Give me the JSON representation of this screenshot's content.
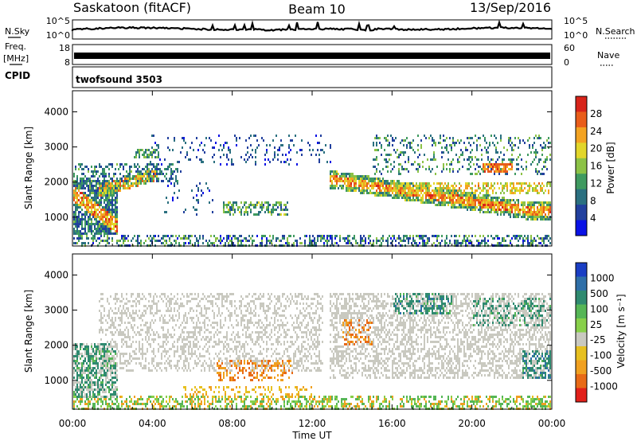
{
  "header": {
    "station": "Saskatoon (fitACF)",
    "beam": "Beam 10",
    "date": "13/Sep/2016"
  },
  "noise_panel": {
    "left_label": "N.Sky",
    "right_label": "N.Search",
    "left_ticks": [
      "10^5",
      "10^0"
    ],
    "right_ticks": [
      "10^5",
      "10^0"
    ]
  },
  "freq_panel": {
    "left_label_line1": "Freq.",
    "left_label_line2": "[MHz]",
    "left_ticks": [
      "18",
      "8"
    ],
    "right_ticks": [
      "60",
      "0"
    ],
    "right_label": "Nave"
  },
  "cpid_panel": {
    "label": "CPID",
    "program": "twofsound 3503"
  },
  "chart_data": [
    {
      "type": "heatmap",
      "panel": "power",
      "ylabel": "Slant Range [km]",
      "yticks": [
        "1000",
        "2000",
        "3000",
        "4000"
      ],
      "ylim": [
        180,
        4600
      ],
      "xticks": [
        "00:00",
        "04:00",
        "08:00",
        "12:00",
        "16:00",
        "20:00",
        "00:00"
      ],
      "xlim_hours": [
        0,
        24
      ],
      "colorbar": {
        "label": "Power [dB]",
        "ticks": [
          "4",
          "8",
          "12",
          "16",
          "20",
          "24",
          "28"
        ],
        "colors": [
          "#0a12e6",
          "#22409e",
          "#2b7080",
          "#3f9a60",
          "#8cc246",
          "#e2d62a",
          "#f3a322",
          "#e95d1a",
          "#d8241a"
        ]
      }
    },
    {
      "type": "heatmap",
      "panel": "velocity",
      "ylabel": "Slant Range [km]",
      "yticks": [
        "1000",
        "2000",
        "3000",
        "4000"
      ],
      "ylim": [
        180,
        4600
      ],
      "xticks": [
        "00:00",
        "04:00",
        "08:00",
        "12:00",
        "16:00",
        "20:00",
        "00:00"
      ],
      "xlim_hours": [
        0,
        24
      ],
      "xlabel": "Time UT",
      "colorbar": {
        "label": "Velocity [m s⁻¹]",
        "ticks": [
          "1000",
          "500",
          "100",
          "25",
          "-25",
          "-100",
          "-500",
          "-1000"
        ],
        "colors": [
          "#1a3ec4",
          "#2f6fa8",
          "#2f8a70",
          "#56b656",
          "#88d04a",
          "#c9c9c0",
          "#e7c020",
          "#f0a020",
          "#e86a16",
          "#e2201a"
        ]
      }
    }
  ]
}
